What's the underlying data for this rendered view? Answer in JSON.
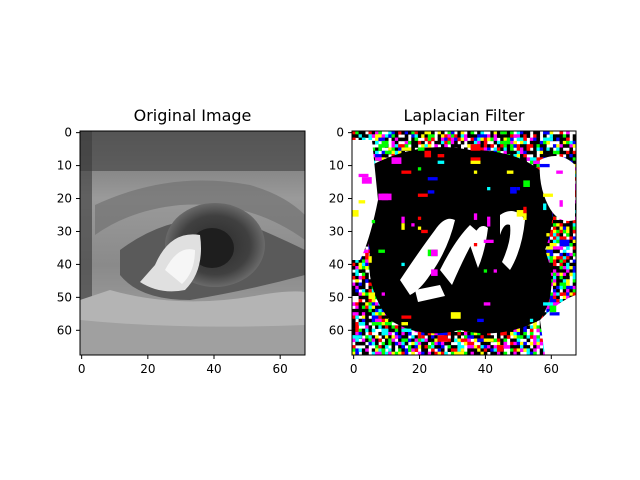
{
  "chart_data": [
    {
      "type": "image",
      "title": "Original Image",
      "xlim": [
        -0.5,
        67.5
      ],
      "ylim": [
        67.5,
        -0.5
      ],
      "xticks": [
        0,
        20,
        40,
        60
      ],
      "yticks": [
        0,
        10,
        20,
        30,
        40,
        50,
        60
      ],
      "colormap": "grayscale"
    },
    {
      "type": "image",
      "title": "Laplacian Filter",
      "xlim": [
        -0.5,
        67.5
      ],
      "ylim": [
        67.5,
        -0.5
      ],
      "xticks": [
        0,
        20,
        40,
        60
      ],
      "yticks": [
        0,
        10,
        20,
        30,
        40,
        50,
        60
      ],
      "colormap": "rgb"
    }
  ],
  "colors": {
    "black": "#000000",
    "white": "#ffffff",
    "red": "#ff0000",
    "green": "#00ff00",
    "blue": "#0000ff",
    "cyan": "#00ffff",
    "magenta": "#ff00ff",
    "yellow": "#ffff00"
  }
}
